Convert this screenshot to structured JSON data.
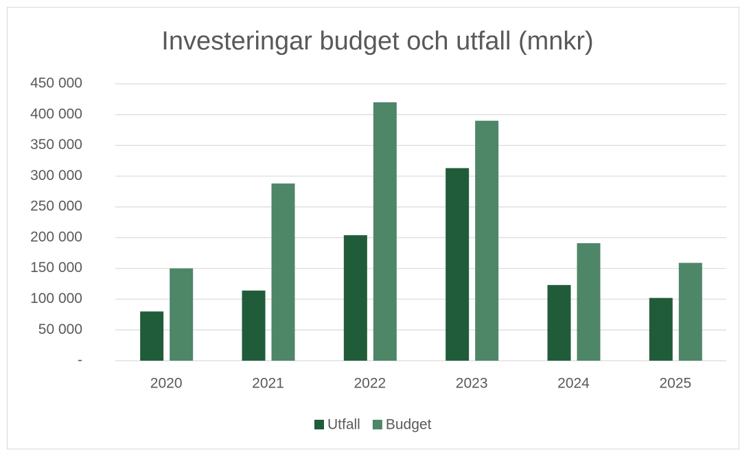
{
  "chart_data": {
    "type": "bar",
    "title": "Investeringar budget och utfall (mnkr)",
    "categories": [
      "2020",
      "2021",
      "2022",
      "2023",
      "2024",
      "2025"
    ],
    "series": [
      {
        "name": "Utfall",
        "color": "#215c3a",
        "values": [
          80000,
          114000,
          204000,
          313000,
          123000,
          102000
        ]
      },
      {
        "name": "Budget",
        "color": "#4e8668",
        "values": [
          150000,
          288000,
          420000,
          390000,
          191000,
          159000
        ]
      }
    ],
    "ylim": [
      0,
      450000
    ],
    "yticks": [
      {
        "value": 0,
        "label": "-"
      },
      {
        "value": 50000,
        "label": "50 000"
      },
      {
        "value": 100000,
        "label": "100 000"
      },
      {
        "value": 150000,
        "label": "150 000"
      },
      {
        "value": 200000,
        "label": "200 000"
      },
      {
        "value": 250000,
        "label": "250 000"
      },
      {
        "value": 300000,
        "label": "300 000"
      },
      {
        "value": 350000,
        "label": "350 000"
      },
      {
        "value": 400000,
        "label": "400 000"
      },
      {
        "value": 450000,
        "label": "450 000"
      }
    ],
    "grid": true,
    "legend": "bottom"
  }
}
